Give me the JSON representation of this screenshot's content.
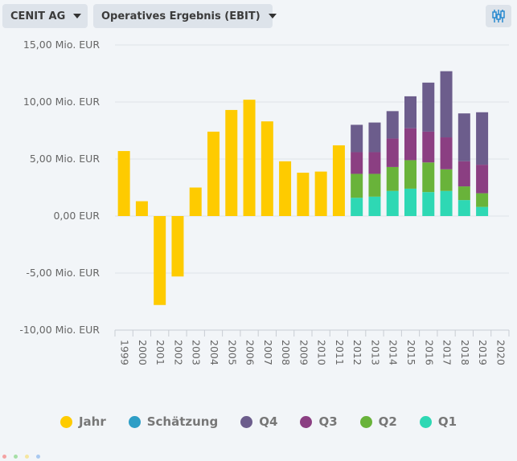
{
  "toolbar": {
    "company": "CENIT AG",
    "metric": "Operatives Ergebnis (EBIT)",
    "settings_icon": "chart-settings-icon"
  },
  "colors": {
    "jahr": "#fecb00",
    "schaetzung": "#2e9ec6",
    "q4": "#6c5d8c",
    "q3": "#8b3f82",
    "q2": "#69b33a",
    "q1": "#2ed8b4",
    "accent": "#2a8bd0"
  },
  "legend": [
    {
      "key": "jahr",
      "label": "Jahr"
    },
    {
      "key": "schaetzung",
      "label": "Schätzung"
    },
    {
      "key": "q4",
      "label": "Q4"
    },
    {
      "key": "q3",
      "label": "Q3"
    },
    {
      "key": "q2",
      "label": "Q2"
    },
    {
      "key": "q1",
      "label": "Q1"
    }
  ],
  "chart_data": {
    "type": "bar",
    "stacked": true,
    "categories": [
      "1999",
      "2000",
      "2001",
      "2002",
      "2003",
      "2004",
      "2005",
      "2006",
      "2007",
      "2008",
      "2009",
      "2010",
      "2011",
      "2012",
      "2013",
      "2014",
      "2015",
      "2016",
      "2017",
      "2018",
      "2019",
      "2020"
    ],
    "y_tick_labels": [
      "15,00 Mio. EUR",
      "10,00 Mio. EUR",
      "5,00 Mio. EUR",
      "0,00 EUR",
      "-5,00 Mio. EUR",
      "-10,00 Mio. EUR"
    ],
    "y_ticks": [
      15,
      10,
      5,
      0,
      -5,
      -10
    ],
    "ylim": [
      -10,
      15
    ],
    "grid": true,
    "legend_position": "bottom",
    "series": [
      {
        "name": "Jahr",
        "key": "jahr",
        "values": [
          5.7,
          1.3,
          -7.8,
          -5.3,
          2.5,
          7.4,
          9.3,
          10.2,
          8.3,
          4.8,
          3.8,
          3.9,
          6.2,
          null,
          null,
          null,
          null,
          null,
          null,
          null,
          null,
          null
        ]
      },
      {
        "name": "Schätzung",
        "key": "schaetzung",
        "values": [
          null,
          null,
          null,
          null,
          null,
          null,
          null,
          null,
          null,
          null,
          null,
          null,
          null,
          null,
          null,
          null,
          null,
          null,
          null,
          null,
          null,
          null
        ]
      },
      {
        "name": "Q1",
        "key": "q1",
        "values": [
          null,
          null,
          null,
          null,
          null,
          null,
          null,
          null,
          null,
          null,
          null,
          null,
          null,
          1.6,
          1.7,
          2.2,
          2.4,
          2.1,
          2.2,
          1.4,
          0.8,
          null
        ]
      },
      {
        "name": "Q2",
        "key": "q2",
        "values": [
          null,
          null,
          null,
          null,
          null,
          null,
          null,
          null,
          null,
          null,
          null,
          null,
          null,
          2.1,
          2.0,
          2.1,
          2.5,
          2.6,
          1.9,
          1.2,
          1.2,
          null
        ]
      },
      {
        "name": "Q3",
        "key": "q3",
        "values": [
          null,
          null,
          null,
          null,
          null,
          null,
          null,
          null,
          null,
          null,
          null,
          null,
          null,
          1.9,
          1.9,
          2.5,
          2.8,
          2.7,
          2.8,
          2.2,
          2.5,
          null
        ]
      },
      {
        "name": "Q4",
        "key": "q4",
        "values": [
          null,
          null,
          null,
          null,
          null,
          null,
          null,
          null,
          null,
          null,
          null,
          null,
          null,
          2.4,
          2.6,
          2.4,
          2.8,
          4.3,
          5.8,
          4.2,
          4.6,
          null
        ]
      }
    ]
  }
}
